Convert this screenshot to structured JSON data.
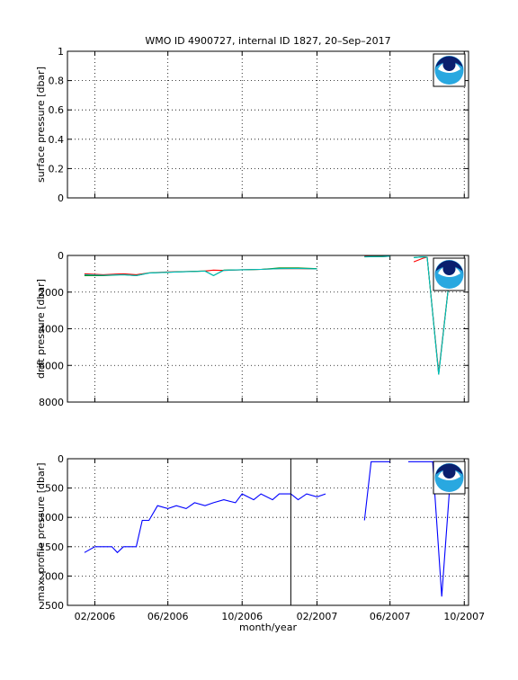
{
  "title": "WMO ID 4900727, internal ID 1827, 20–Sep–2017",
  "xlabel": "month/year",
  "x_ticks": [
    "02/2006",
    "06/2006",
    "10/2006",
    "02/2007",
    "06/2007",
    "10/2007"
  ],
  "colors": {
    "red": "#ff0000",
    "green": "#008000",
    "cyan": "#00bfbf",
    "blue": "#0000ff",
    "axis": "#000000",
    "noaa_dark": "#0a1f6e",
    "noaa_light": "#29a8e0"
  },
  "logo_icon": "noaa-logo-icon",
  "chart_data": [
    {
      "type": "line",
      "ylabel": "surface pressure [dbar]",
      "ylim": [
        0,
        1
      ],
      "y_ticks": [
        "0",
        "0.2",
        "0.4",
        "0.6",
        "0.8",
        "1"
      ],
      "grid": true,
      "series": []
    },
    {
      "type": "line",
      "ylabel": "drift pressure [dbar]",
      "ylim": [
        0,
        8000
      ],
      "y_reversed": true,
      "y_ticks": [
        "0",
        "2000",
        "4000",
        "6000",
        "8000"
      ],
      "grid": true,
      "series": [
        {
          "color": "red",
          "points": [
            [
              "2006-01-15",
              1000
            ],
            [
              "2006-02-15",
              1050
            ],
            [
              "2006-03-20",
              1000
            ],
            [
              "2006-04-10",
              1050
            ],
            [
              "2006-05-01",
              950
            ],
            [
              "2006-06-01",
              900
            ],
            [
              "2006-07-01",
              880
            ],
            [
              "2006-08-01",
              850
            ],
            [
              "2006-08-15",
              800
            ],
            [
              "2006-09-01",
              820
            ],
            [
              "2006-10-01",
              780
            ],
            [
              "2006-11-01",
              760
            ],
            [
              "2006-12-01",
              720
            ],
            [
              "2007-01-01",
              720
            ],
            [
              "2007-02-01",
              730
            ],
            null,
            [
              "2007-04-20",
              50
            ],
            [
              "2007-05-20",
              60
            ],
            [
              "2007-06-01",
              40
            ],
            null,
            [
              "2007-07-10",
              350
            ],
            [
              "2007-07-25",
              150
            ],
            [
              "2007-08-01",
              100
            ],
            [
              "2007-08-20",
              6400
            ],
            [
              "2007-09-10",
              200
            ],
            [
              "2007-09-25",
              150
            ]
          ]
        },
        {
          "color": "green",
          "points": [
            [
              "2006-01-15",
              1100
            ],
            [
              "2006-02-15",
              1100
            ],
            [
              "2006-03-20",
              1050
            ],
            [
              "2006-04-10",
              1100
            ],
            [
              "2006-05-01",
              950
            ],
            [
              "2006-06-01",
              920
            ],
            [
              "2006-07-01",
              880
            ],
            [
              "2006-08-01",
              850
            ],
            [
              "2006-08-15",
              1100
            ],
            [
              "2006-09-01",
              800
            ],
            [
              "2006-10-01",
              780
            ],
            [
              "2006-11-01",
              760
            ],
            [
              "2006-12-01",
              680
            ],
            [
              "2007-01-01",
              680
            ],
            [
              "2007-02-01",
              720
            ],
            null,
            [
              "2007-04-20",
              80
            ],
            [
              "2007-05-20",
              60
            ],
            [
              "2007-06-01",
              40
            ],
            null,
            [
              "2007-07-10",
              120
            ],
            [
              "2007-07-25",
              80
            ],
            [
              "2007-08-01",
              100
            ],
            [
              "2007-08-20",
              6500
            ],
            [
              "2007-09-10",
              200
            ],
            [
              "2007-09-25",
              150
            ]
          ]
        },
        {
          "color": "cyan",
          "points": [
            [
              "2006-01-15",
              1050
            ],
            [
              "2006-02-15",
              1080
            ],
            [
              "2006-03-20",
              1050
            ],
            [
              "2006-04-10",
              1100
            ],
            [
              "2006-05-01",
              960
            ],
            [
              "2006-06-01",
              920
            ],
            [
              "2006-07-01",
              890
            ],
            [
              "2006-08-01",
              860
            ],
            [
              "2006-08-15",
              1100
            ],
            [
              "2006-09-01",
              810
            ],
            [
              "2006-10-01",
              780
            ],
            [
              "2006-11-01",
              760
            ],
            [
              "2006-12-01",
              720
            ],
            [
              "2007-01-01",
              710
            ],
            [
              "2007-02-01",
              730
            ],
            null,
            [
              "2007-04-20",
              70
            ],
            [
              "2007-05-20",
              60
            ],
            [
              "2007-06-01",
              40
            ],
            null,
            [
              "2007-07-10",
              120
            ],
            [
              "2007-07-25",
              80
            ],
            [
              "2007-08-01",
              100
            ],
            [
              "2007-08-20",
              6500
            ],
            [
              "2007-09-10",
              200
            ],
            [
              "2007-09-25",
              150
            ]
          ]
        }
      ]
    },
    {
      "type": "line",
      "ylabel": "max. profile pressure [dbar]",
      "ylim": [
        0,
        2500
      ],
      "y_reversed": true,
      "y_ticks": [
        "0",
        "500",
        "1000",
        "1500",
        "2000",
        "2500"
      ],
      "grid": true,
      "vline": "2006-12-20",
      "series": [
        {
          "color": "blue",
          "points": [
            [
              "2006-01-15",
              1600
            ],
            [
              "2006-02-01",
              1500
            ],
            [
              "2006-03-01",
              1500
            ],
            [
              "2006-03-10",
              1600
            ],
            [
              "2006-03-20",
              1500
            ],
            [
              "2006-04-10",
              1500
            ],
            [
              "2006-04-20",
              1050
            ],
            [
              "2006-05-01",
              1050
            ],
            [
              "2006-05-15",
              800
            ],
            [
              "2006-06-01",
              850
            ],
            [
              "2006-06-15",
              800
            ],
            [
              "2006-07-01",
              850
            ],
            [
              "2006-07-15",
              750
            ],
            [
              "2006-08-01",
              800
            ],
            [
              "2006-08-15",
              750
            ],
            [
              "2006-09-01",
              700
            ],
            [
              "2006-09-20",
              750
            ],
            [
              "2006-10-01",
              600
            ],
            [
              "2006-10-20",
              700
            ],
            [
              "2006-11-01",
              600
            ],
            [
              "2006-11-20",
              700
            ],
            [
              "2006-12-01",
              600
            ],
            [
              "2006-12-20",
              600
            ],
            [
              "2007-01-01",
              700
            ],
            [
              "2007-01-15",
              600
            ],
            [
              "2007-02-01",
              650
            ],
            [
              "2007-02-15",
              600
            ],
            null,
            [
              "2007-04-20",
              1050
            ],
            [
              "2007-05-01",
              50
            ],
            [
              "2007-06-01",
              50
            ],
            null,
            [
              "2007-07-01",
              50
            ],
            [
              "2007-07-15",
              50
            ],
            [
              "2007-08-10",
              50
            ],
            [
              "2007-08-25",
              2350
            ],
            [
              "2007-09-10",
              50
            ]
          ]
        }
      ]
    }
  ]
}
